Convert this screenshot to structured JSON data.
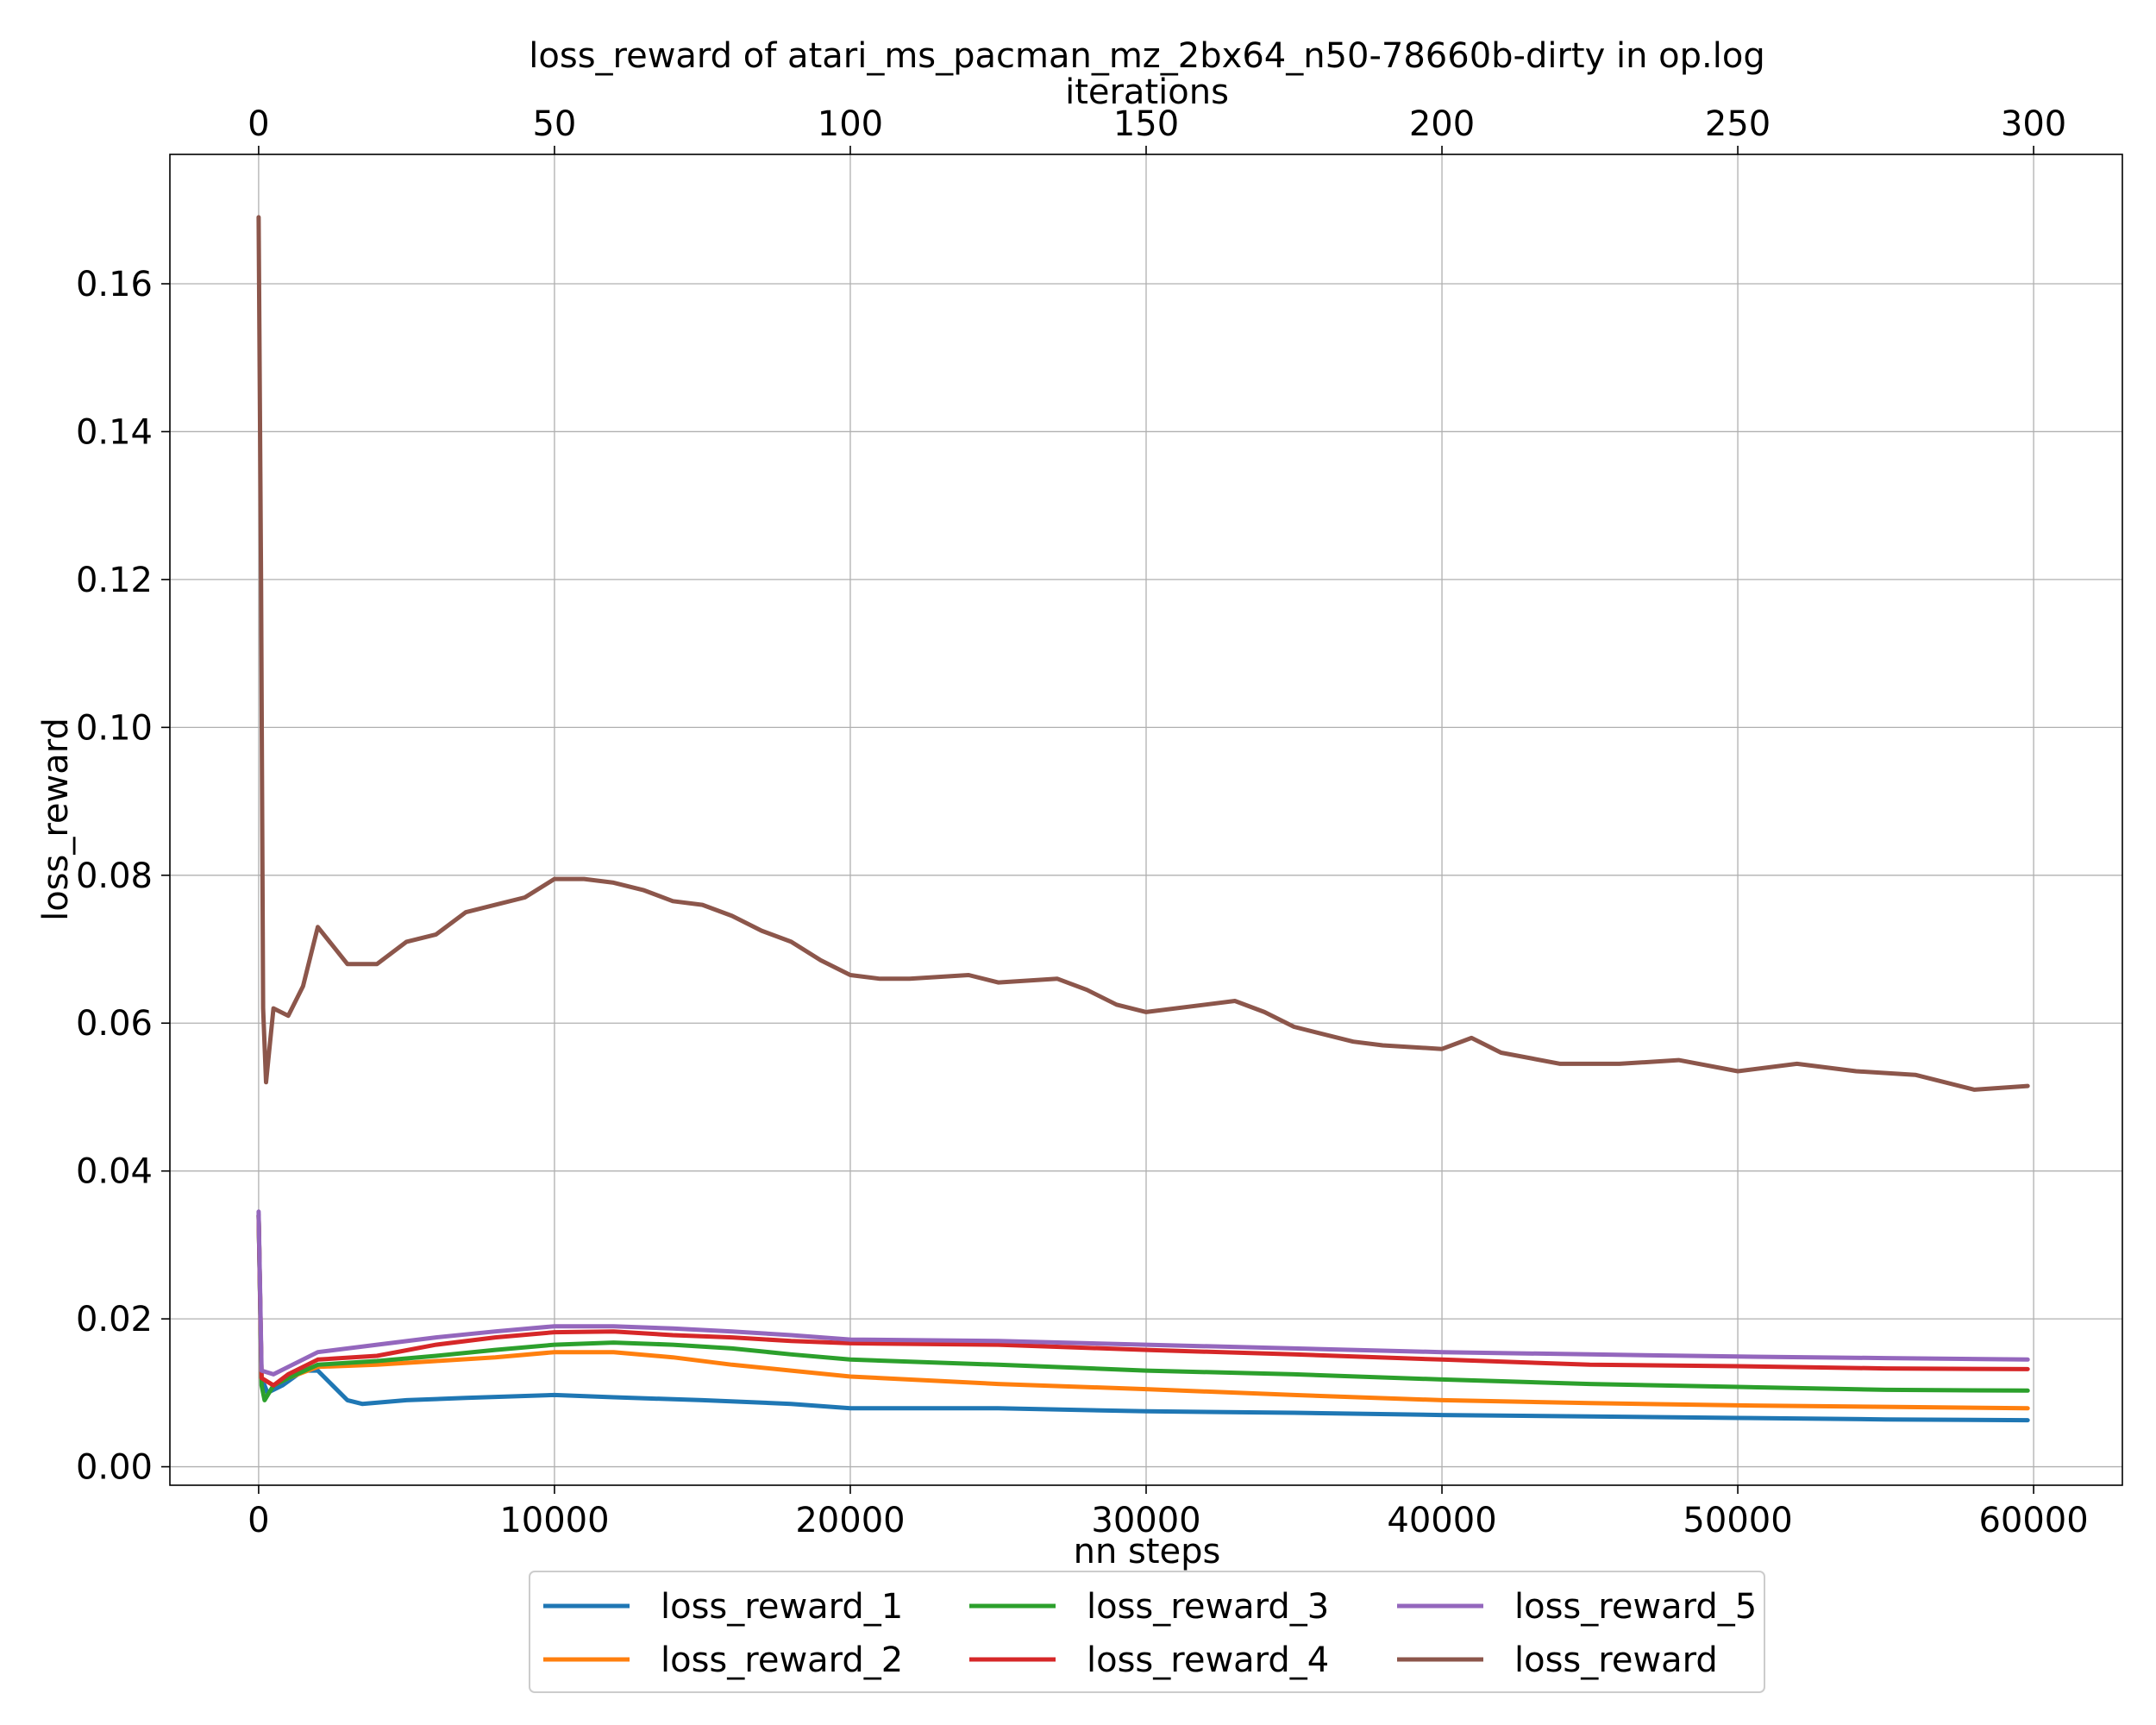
{
  "chart_data": {
    "type": "line",
    "title": "loss_reward of atari_ms_pacman_mz_2bx64_n50-78660b-dirty in op.log",
    "xlabel": "nn steps",
    "ylabel": "loss_reward",
    "top_xlabel": "iterations",
    "xlim": [
      -3000,
      63000
    ],
    "ylim": [
      -0.0025,
      0.1775
    ],
    "top_xlim": [
      -15,
      315
    ],
    "grid": true,
    "legend_position": "below",
    "legend_columns": 3,
    "x_ticks": [
      0,
      10000,
      20000,
      30000,
      40000,
      50000,
      60000
    ],
    "x_tick_labels": [
      "0",
      "10000",
      "20000",
      "30000",
      "40000",
      "50000",
      "60000"
    ],
    "y_ticks": [
      0.0,
      0.02,
      0.04,
      0.06,
      0.08,
      0.1,
      0.12,
      0.14,
      0.16
    ],
    "y_tick_labels": [
      "0.00",
      "0.02",
      "0.04",
      "0.06",
      "0.08",
      "0.10",
      "0.12",
      "0.14",
      "0.16"
    ],
    "top_x_ticks": [
      0,
      50,
      100,
      150,
      200,
      250,
      300
    ],
    "top_x_tick_labels": [
      "0",
      "50",
      "100",
      "150",
      "200",
      "250",
      "300"
    ],
    "series": [
      {
        "name": "loss_reward_1",
        "color": "#1f77b4",
        "points": [
          [
            0,
            0.034
          ],
          [
            100,
            0.012
          ],
          [
            300,
            0.01
          ],
          [
            800,
            0.011
          ],
          [
            1500,
            0.013
          ],
          [
            2000,
            0.013
          ],
          [
            2500,
            0.011
          ],
          [
            3000,
            0.009
          ],
          [
            3500,
            0.0085
          ],
          [
            5000,
            0.009
          ],
          [
            7000,
            0.0093
          ],
          [
            10000,
            0.0097
          ],
          [
            12000,
            0.0094
          ],
          [
            15000,
            0.009
          ],
          [
            18000,
            0.0085
          ],
          [
            20000,
            0.0079
          ],
          [
            25000,
            0.0079
          ],
          [
            30000,
            0.0075
          ],
          [
            35000,
            0.0073
          ],
          [
            40000,
            0.007
          ],
          [
            45000,
            0.0068
          ],
          [
            50000,
            0.0066
          ],
          [
            55000,
            0.0064
          ],
          [
            59800,
            0.0063
          ]
        ]
      },
      {
        "name": "loss_reward_2",
        "color": "#ff7f0e",
        "points": [
          [
            0,
            0.034
          ],
          [
            100,
            0.012
          ],
          [
            500,
            0.011
          ],
          [
            1000,
            0.012
          ],
          [
            2000,
            0.0135
          ],
          [
            4000,
            0.0138
          ],
          [
            6000,
            0.0143
          ],
          [
            8000,
            0.0148
          ],
          [
            10000,
            0.0155
          ],
          [
            12000,
            0.0155
          ],
          [
            14000,
            0.0148
          ],
          [
            16000,
            0.0138
          ],
          [
            18000,
            0.013
          ],
          [
            20000,
            0.0122
          ],
          [
            25000,
            0.0112
          ],
          [
            30000,
            0.0105
          ],
          [
            35000,
            0.0097
          ],
          [
            40000,
            0.009
          ],
          [
            45000,
            0.0086
          ],
          [
            50000,
            0.0083
          ],
          [
            55000,
            0.0081
          ],
          [
            59800,
            0.0079
          ]
        ]
      },
      {
        "name": "loss_reward_3",
        "color": "#2ca02c",
        "points": [
          [
            0,
            0.034
          ],
          [
            100,
            0.011
          ],
          [
            200,
            0.009
          ],
          [
            500,
            0.011
          ],
          [
            1000,
            0.012
          ],
          [
            2000,
            0.0138
          ],
          [
            4000,
            0.0143
          ],
          [
            6000,
            0.015
          ],
          [
            8000,
            0.0158
          ],
          [
            10000,
            0.0165
          ],
          [
            12000,
            0.0168
          ],
          [
            14000,
            0.0165
          ],
          [
            16000,
            0.016
          ],
          [
            18000,
            0.0152
          ],
          [
            20000,
            0.0145
          ],
          [
            25000,
            0.0138
          ],
          [
            30000,
            0.013
          ],
          [
            35000,
            0.0125
          ],
          [
            40000,
            0.0118
          ],
          [
            45000,
            0.0112
          ],
          [
            50000,
            0.0108
          ],
          [
            55000,
            0.0104
          ],
          [
            59800,
            0.0103
          ]
        ]
      },
      {
        "name": "loss_reward_4",
        "color": "#d62728",
        "points": [
          [
            0,
            0.034
          ],
          [
            100,
            0.012
          ],
          [
            500,
            0.011
          ],
          [
            1000,
            0.0125
          ],
          [
            2000,
            0.0145
          ],
          [
            4000,
            0.015
          ],
          [
            6000,
            0.0165
          ],
          [
            8000,
            0.0175
          ],
          [
            10000,
            0.0182
          ],
          [
            12000,
            0.0183
          ],
          [
            14000,
            0.0178
          ],
          [
            16000,
            0.0175
          ],
          [
            18000,
            0.017
          ],
          [
            20000,
            0.0167
          ],
          [
            25000,
            0.0165
          ],
          [
            30000,
            0.0158
          ],
          [
            35000,
            0.0152
          ],
          [
            40000,
            0.0145
          ],
          [
            45000,
            0.0138
          ],
          [
            50000,
            0.0136
          ],
          [
            55000,
            0.0133
          ],
          [
            59800,
            0.0132
          ]
        ]
      },
      {
        "name": "loss_reward_5",
        "color": "#9467bd",
        "points": [
          [
            0,
            0.0345
          ],
          [
            100,
            0.013
          ],
          [
            500,
            0.0125
          ],
          [
            1000,
            0.0135
          ],
          [
            2000,
            0.0155
          ],
          [
            4000,
            0.0165
          ],
          [
            6000,
            0.0175
          ],
          [
            8000,
            0.0183
          ],
          [
            10000,
            0.019
          ],
          [
            12000,
            0.019
          ],
          [
            14000,
            0.0187
          ],
          [
            16000,
            0.0183
          ],
          [
            18000,
            0.0178
          ],
          [
            20000,
            0.0172
          ],
          [
            25000,
            0.017
          ],
          [
            30000,
            0.0165
          ],
          [
            35000,
            0.016
          ],
          [
            40000,
            0.0155
          ],
          [
            45000,
            0.0152
          ],
          [
            50000,
            0.0149
          ],
          [
            55000,
            0.0147
          ],
          [
            59800,
            0.0145
          ]
        ]
      },
      {
        "name": "loss_reward",
        "color": "#8c564b",
        "points": [
          [
            0,
            0.169
          ],
          [
            80,
            0.12
          ],
          [
            150,
            0.062
          ],
          [
            250,
            0.052
          ],
          [
            500,
            0.062
          ],
          [
            1000,
            0.061
          ],
          [
            1500,
            0.065
          ],
          [
            2000,
            0.073
          ],
          [
            3000,
            0.068
          ],
          [
            4000,
            0.068
          ],
          [
            5000,
            0.071
          ],
          [
            6000,
            0.072
          ],
          [
            7000,
            0.075
          ],
          [
            8000,
            0.076
          ],
          [
            9000,
            0.077
          ],
          [
            10000,
            0.0795
          ],
          [
            11000,
            0.0795
          ],
          [
            12000,
            0.079
          ],
          [
            13000,
            0.078
          ],
          [
            14000,
            0.0765
          ],
          [
            15000,
            0.076
          ],
          [
            16000,
            0.0745
          ],
          [
            17000,
            0.0725
          ],
          [
            18000,
            0.071
          ],
          [
            19000,
            0.0685
          ],
          [
            20000,
            0.0665
          ],
          [
            21000,
            0.066
          ],
          [
            22000,
            0.066
          ],
          [
            24000,
            0.0665
          ],
          [
            25000,
            0.0655
          ],
          [
            27000,
            0.066
          ],
          [
            28000,
            0.0645
          ],
          [
            29000,
            0.0625
          ],
          [
            30000,
            0.0615
          ],
          [
            32000,
            0.0625
          ],
          [
            33000,
            0.063
          ],
          [
            34000,
            0.0615
          ],
          [
            35000,
            0.0595
          ],
          [
            37000,
            0.0575
          ],
          [
            38000,
            0.057
          ],
          [
            40000,
            0.0565
          ],
          [
            41000,
            0.058
          ],
          [
            42000,
            0.056
          ],
          [
            44000,
            0.0545
          ],
          [
            46000,
            0.0545
          ],
          [
            48000,
            0.055
          ],
          [
            50000,
            0.0535
          ],
          [
            52000,
            0.0545
          ],
          [
            54000,
            0.0535
          ],
          [
            56000,
            0.053
          ],
          [
            58000,
            0.051
          ],
          [
            59800,
            0.0515
          ]
        ]
      }
    ]
  }
}
